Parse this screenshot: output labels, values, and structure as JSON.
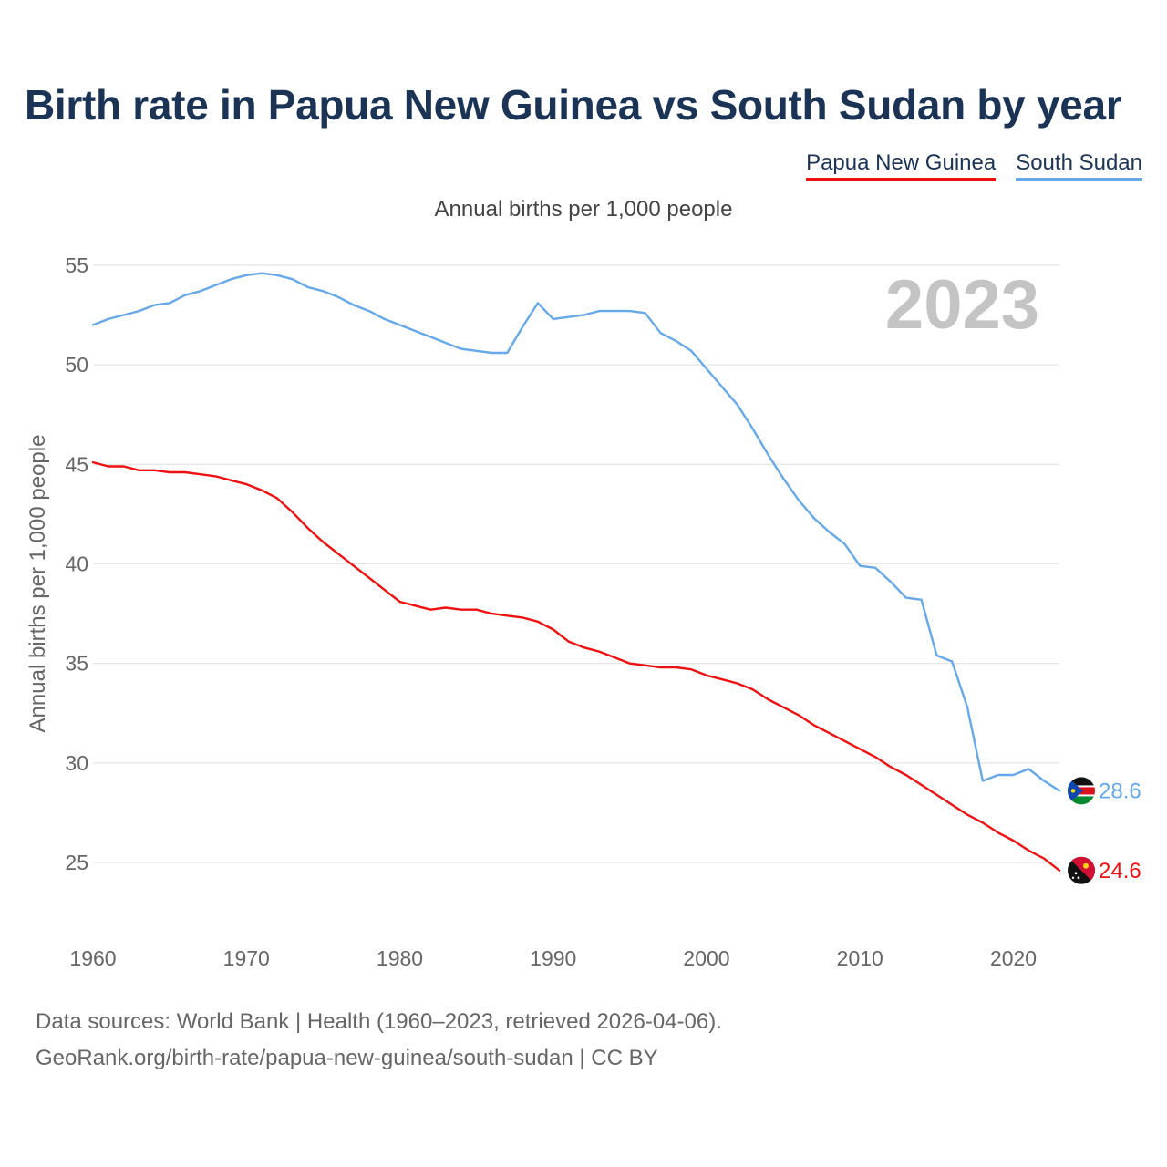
{
  "colors": {
    "png": "#ee1111",
    "ssd": "#66a8e8",
    "title": "#1b3354",
    "grid": "#e6e6e6"
  },
  "footer": {
    "line1": "Data sources: World Bank | Health (1960–2023, retrieved 2026-04-06).",
    "line2": "GeoRank.org/birth-rate/papua-new-guinea/south-sudan | CC BY"
  },
  "chart_data": {
    "type": "line",
    "title": "Birth rate in Papua New Guinea vs South Sudan by year",
    "subtitle": "Annual births per 1,000 people",
    "xlabel": "",
    "ylabel": "Annual births per 1,000 people",
    "year_label": "2023",
    "xlim": [
      1960,
      2023
    ],
    "ylim": [
      22.3,
      55.5
    ],
    "x_ticks": [
      1960,
      1970,
      1980,
      1990,
      2000,
      2010,
      2020
    ],
    "y_ticks": [
      25,
      30,
      35,
      40,
      45,
      50,
      55
    ],
    "legend_position": "top-right",
    "grid": true,
    "x": [
      1960,
      1961,
      1962,
      1963,
      1964,
      1965,
      1966,
      1967,
      1968,
      1969,
      1970,
      1971,
      1972,
      1973,
      1974,
      1975,
      1976,
      1977,
      1978,
      1979,
      1980,
      1981,
      1982,
      1983,
      1984,
      1985,
      1986,
      1987,
      1988,
      1989,
      1990,
      1991,
      1992,
      1993,
      1994,
      1995,
      1996,
      1997,
      1998,
      1999,
      2000,
      2001,
      2002,
      2003,
      2004,
      2005,
      2006,
      2007,
      2008,
      2009,
      2010,
      2011,
      2012,
      2013,
      2014,
      2015,
      2016,
      2017,
      2018,
      2019,
      2020,
      2021,
      2022,
      2023
    ],
    "series": [
      {
        "name": "Papua New Guinea",
        "color": "#ee1111",
        "end_label": "24.6",
        "values": [
          45.1,
          44.9,
          44.9,
          44.7,
          44.7,
          44.6,
          44.6,
          44.5,
          44.4,
          44.2,
          44.0,
          43.7,
          43.3,
          42.6,
          41.8,
          41.1,
          40.5,
          39.9,
          39.3,
          38.7,
          38.1,
          37.9,
          37.7,
          37.8,
          37.7,
          37.7,
          37.5,
          37.4,
          37.3,
          37.1,
          36.7,
          36.1,
          35.8,
          35.6,
          35.3,
          35.0,
          34.9,
          34.8,
          34.8,
          34.7,
          34.4,
          34.2,
          34.0,
          33.7,
          33.2,
          32.8,
          32.4,
          31.9,
          31.5,
          31.1,
          30.7,
          30.3,
          29.8,
          29.4,
          28.9,
          28.4,
          27.9,
          27.4,
          27.0,
          26.5,
          26.1,
          25.6,
          25.2,
          24.6
        ]
      },
      {
        "name": "South Sudan",
        "color": "#66a8e8",
        "end_label": "28.6",
        "values": [
          52.0,
          52.3,
          52.5,
          52.7,
          53.0,
          53.1,
          53.5,
          53.7,
          54.0,
          54.3,
          54.5,
          54.6,
          54.5,
          54.3,
          53.9,
          53.7,
          53.4,
          53.0,
          52.7,
          52.3,
          52.0,
          51.7,
          51.4,
          51.1,
          50.8,
          50.7,
          50.6,
          50.6,
          51.9,
          53.1,
          52.3,
          52.4,
          52.5,
          52.7,
          52.7,
          52.7,
          52.6,
          51.6,
          51.2,
          50.7,
          49.8,
          48.9,
          48.0,
          46.8,
          45.5,
          44.3,
          43.2,
          42.3,
          41.6,
          41.0,
          39.9,
          39.8,
          39.1,
          38.3,
          38.2,
          35.4,
          35.1,
          32.8,
          29.1,
          29.4,
          29.4,
          29.7,
          29.1,
          28.6
        ]
      }
    ]
  }
}
